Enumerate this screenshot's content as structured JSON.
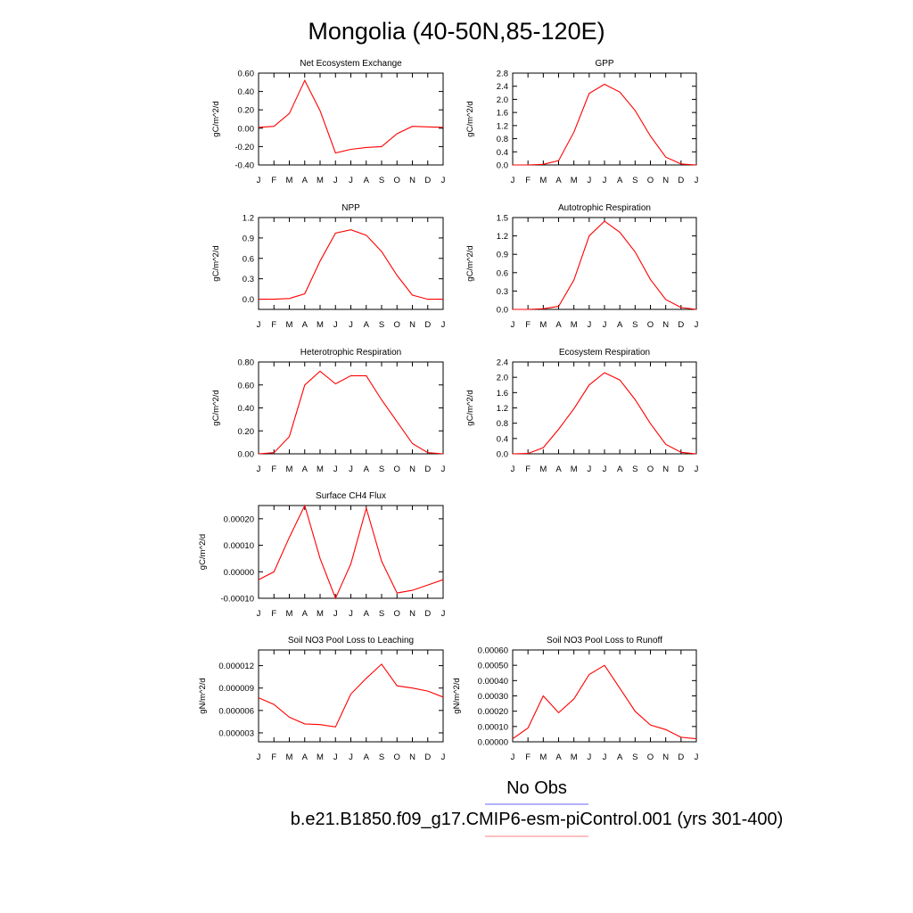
{
  "figure_title": "Mongolia (40-50N,85-120E)",
  "months": [
    "J",
    "F",
    "M",
    "A",
    "M",
    "J",
    "J",
    "A",
    "S",
    "O",
    "N",
    "D",
    "J"
  ],
  "colors": {
    "model": "#ff0000",
    "obs": "#6666ff",
    "axis": "#000000"
  },
  "legend": [
    {
      "label": "No Obs",
      "color": "#6666ff"
    },
    {
      "label": "b.e21.B1850.f09_g17.CMIP6-esm-piControl.001 (yrs 301-400)",
      "color": "#ff8080"
    }
  ],
  "chart_data": [
    {
      "type": "line",
      "title": "Net Ecosystem Exchange",
      "ylabel": "gC/m^2/d",
      "ylim": [
        -0.4,
        0.6
      ],
      "yticks": [
        "0.60",
        "0.40",
        "0.20",
        "0.00",
        "-0.20",
        "-0.40"
      ],
      "ytick_values": [
        0.6,
        0.4,
        0.2,
        0.0,
        -0.2,
        -0.4
      ],
      "x": [
        "J",
        "F",
        "M",
        "A",
        "M",
        "J",
        "J",
        "A",
        "S",
        "O",
        "N",
        "D",
        "J"
      ],
      "series": [
        {
          "values": [
            0.01,
            0.02,
            0.16,
            0.52,
            0.19,
            -0.27,
            -0.23,
            -0.21,
            -0.2,
            -0.06,
            0.02,
            0.015,
            0.01
          ]
        }
      ]
    },
    {
      "type": "line",
      "title": "GPP",
      "ylabel": "gC/m^2/d",
      "ylim": [
        0.0,
        2.8
      ],
      "yticks": [
        "2.8",
        "2.4",
        "2.0",
        "1.6",
        "1.2",
        "0.8",
        "0.4",
        "0.0"
      ],
      "ytick_values": [
        2.8,
        2.4,
        2.0,
        1.6,
        1.2,
        0.8,
        0.4,
        0.0
      ],
      "x": [
        "J",
        "F",
        "M",
        "A",
        "M",
        "J",
        "J",
        "A",
        "S",
        "O",
        "N",
        "D",
        "J"
      ],
      "series": [
        {
          "values": [
            0.0,
            0.0,
            0.02,
            0.13,
            1.0,
            2.18,
            2.46,
            2.22,
            1.66,
            0.88,
            0.24,
            0.03,
            0.0
          ]
        }
      ]
    },
    {
      "type": "line",
      "title": "NPP",
      "ylabel": "gC/m^2/d",
      "ylim": [
        -0.15,
        1.2
      ],
      "yticks": [
        "1.2",
        "0.9",
        "0.6",
        "0.3",
        "0.0"
      ],
      "ytick_values": [
        1.2,
        0.9,
        0.6,
        0.3,
        0.0
      ],
      "x": [
        "J",
        "F",
        "M",
        "A",
        "M",
        "J",
        "J",
        "A",
        "S",
        "O",
        "N",
        "D",
        "J"
      ],
      "series": [
        {
          "values": [
            0.0,
            0.0,
            0.01,
            0.08,
            0.56,
            0.97,
            1.02,
            0.94,
            0.7,
            0.35,
            0.06,
            0.0,
            0.0
          ]
        }
      ]
    },
    {
      "type": "line",
      "title": "Autotrophic Respiration",
      "ylabel": "gC/m^2/d",
      "ylim": [
        0.0,
        1.5
      ],
      "yticks": [
        "1.5",
        "1.2",
        "0.9",
        "0.6",
        "0.3",
        "0.0"
      ],
      "ytick_values": [
        1.5,
        1.2,
        0.9,
        0.6,
        0.3,
        0.0
      ],
      "x": [
        "J",
        "F",
        "M",
        "A",
        "M",
        "J",
        "J",
        "A",
        "S",
        "O",
        "N",
        "D",
        "J"
      ],
      "series": [
        {
          "values": [
            0.0,
            0.0,
            0.01,
            0.05,
            0.48,
            1.2,
            1.44,
            1.26,
            0.94,
            0.49,
            0.16,
            0.03,
            0.0
          ]
        }
      ]
    },
    {
      "type": "line",
      "title": "Heterotrophic Respiration",
      "ylabel": "gC/m^2/d",
      "ylim": [
        0.0,
        0.8
      ],
      "yticks": [
        "0.80",
        "0.60",
        "0.40",
        "0.20",
        "0.00"
      ],
      "ytick_values": [
        0.8,
        0.6,
        0.4,
        0.2,
        0.0
      ],
      "x": [
        "J",
        "F",
        "M",
        "A",
        "M",
        "J",
        "J",
        "A",
        "S",
        "O",
        "N",
        "D",
        "J"
      ],
      "series": [
        {
          "values": [
            0.0,
            0.01,
            0.15,
            0.6,
            0.72,
            0.61,
            0.68,
            0.68,
            0.47,
            0.28,
            0.09,
            0.01,
            0.0
          ]
        }
      ]
    },
    {
      "type": "line",
      "title": "Ecosystem Respiration",
      "ylabel": "gC/m^2/d",
      "ylim": [
        0.0,
        2.4
      ],
      "yticks": [
        "2.4",
        "2.0",
        "1.6",
        "1.2",
        "0.8",
        "0.4",
        "0.0"
      ],
      "ytick_values": [
        2.4,
        2.0,
        1.6,
        1.2,
        0.8,
        0.4,
        0.0
      ],
      "x": [
        "J",
        "F",
        "M",
        "A",
        "M",
        "J",
        "J",
        "A",
        "S",
        "O",
        "N",
        "D",
        "J"
      ],
      "series": [
        {
          "values": [
            0.0,
            0.01,
            0.16,
            0.64,
            1.18,
            1.8,
            2.12,
            1.93,
            1.42,
            0.79,
            0.25,
            0.04,
            0.0
          ]
        }
      ]
    },
    {
      "type": "line",
      "title": "Surface CH4 Flux",
      "ylabel": "gC/m^2/d",
      "ylim": [
        -0.0001,
        0.00025
      ],
      "yticks": [
        "0.00020",
        "0.00010",
        "0.00000",
        "-0.00010"
      ],
      "ytick_values": [
        0.0002,
        0.0001,
        0.0,
        -0.0001
      ],
      "x": [
        "J",
        "F",
        "M",
        "A",
        "M",
        "J",
        "J",
        "A",
        "S",
        "O",
        "N",
        "D",
        "J"
      ],
      "series": [
        {
          "values": [
            -3e-05,
            0.0,
            0.00013,
            0.00025,
            5e-05,
            -0.0001,
            3e-05,
            0.00024,
            4e-05,
            -8e-05,
            -7e-05,
            -5e-05,
            -3e-05
          ]
        }
      ]
    },
    {
      "type": "line",
      "title": "Soil NO3 Pool Loss to Leaching",
      "ylabel": "gN/m^2/d",
      "ylim": [
        1.8e-06,
        1.41e-05
      ],
      "yticks": [
        "0.000012",
        "0.000009",
        "0.000006",
        "0.000003"
      ],
      "ytick_values": [
        1.2e-05,
        9e-06,
        6e-06,
        3e-06
      ],
      "x": [
        "J",
        "F",
        "M",
        "A",
        "M",
        "J",
        "J",
        "A",
        "S",
        "O",
        "N",
        "D",
        "J"
      ],
      "series": [
        {
          "values": [
            7.7e-06,
            6.8e-06,
            5.1e-06,
            4.2e-06,
            4.1e-06,
            3.8e-06,
            8.2e-06,
            1.03e-05,
            1.22e-05,
            9.3e-06,
            9e-06,
            8.6e-06,
            7.8e-06
          ]
        }
      ]
    },
    {
      "type": "line",
      "title": "Soil NO3 Pool Loss to Runoff",
      "ylabel": "gN/m^2/d",
      "ylim": [
        0.0,
        0.0006
      ],
      "yticks": [
        "0.00060",
        "0.00050",
        "0.00040",
        "0.00030",
        "0.00020",
        "0.00010",
        "0.00000"
      ],
      "ytick_values": [
        0.0006,
        0.0005,
        0.0004,
        0.0003,
        0.0002,
        0.0001,
        0.0
      ],
      "x": [
        "J",
        "F",
        "M",
        "A",
        "M",
        "J",
        "J",
        "A",
        "S",
        "O",
        "N",
        "D",
        "J"
      ],
      "series": [
        {
          "values": [
            2e-05,
            9e-05,
            0.0003,
            0.00019,
            0.00028,
            0.00044,
            0.0005,
            0.00035,
            0.0002,
            0.00011,
            8e-05,
            3e-05,
            2e-05
          ]
        }
      ]
    }
  ]
}
